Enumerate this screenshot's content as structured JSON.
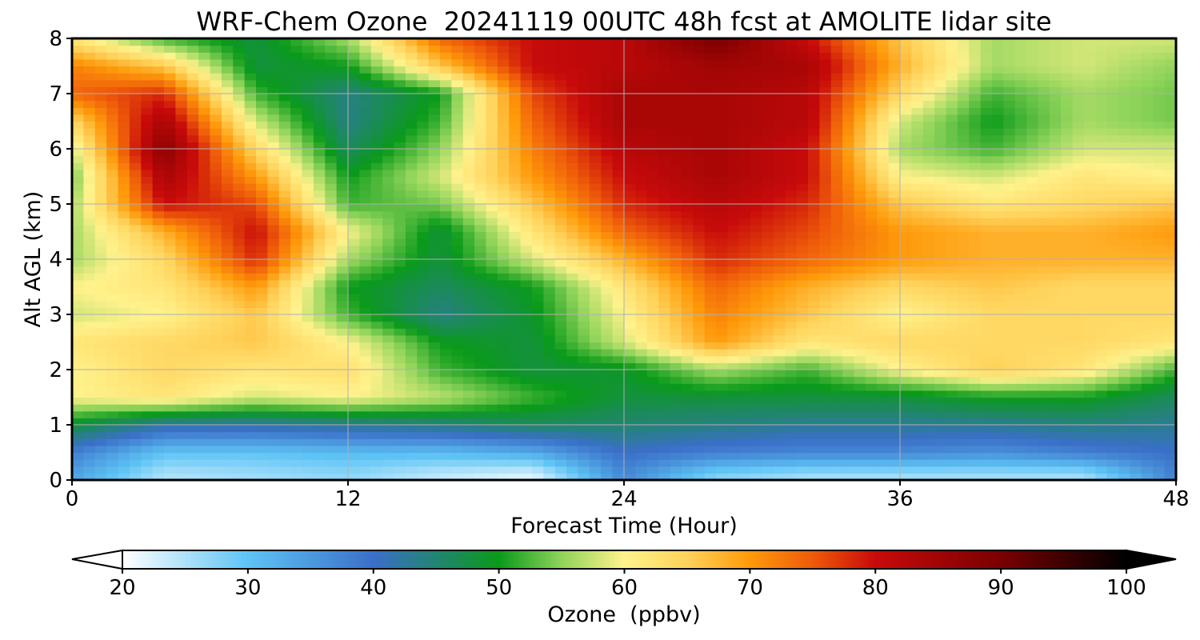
{
  "chart_data": {
    "type": "heatmap",
    "title": "WRF-Chem Ozone  20241119 00UTC 48h fcst at AMOLITE lidar site",
    "xlabel": "Forecast Time (Hour)",
    "ylabel": "Alt AGL (km)",
    "xlim": [
      0,
      48
    ],
    "ylim": [
      0,
      8
    ],
    "x_ticks": [
      0,
      12,
      24,
      36,
      48
    ],
    "y_ticks": [
      0,
      1,
      2,
      3,
      4,
      5,
      6,
      7,
      8
    ],
    "grid": true,
    "colorbar": {
      "label": "Ozone  (ppbv)",
      "orientation": "horizontal",
      "position": "bottom",
      "range": [
        20,
        100
      ],
      "ticks": [
        20,
        30,
        40,
        50,
        60,
        70,
        80,
        90,
        100
      ],
      "extend": "both",
      "stops": [
        {
          "value": 20,
          "color": "#ffffff"
        },
        {
          "value": 30,
          "color": "#5ec4f5"
        },
        {
          "value": 40,
          "color": "#3a6fc8"
        },
        {
          "value": 50,
          "color": "#0a9a1a"
        },
        {
          "value": 55,
          "color": "#8fd45a"
        },
        {
          "value": 60,
          "color": "#fff28c"
        },
        {
          "value": 65,
          "color": "#ffd25a"
        },
        {
          "value": 70,
          "color": "#ff9a0a"
        },
        {
          "value": 75,
          "color": "#ee5a0a"
        },
        {
          "value": 80,
          "color": "#c80a0a"
        },
        {
          "value": 90,
          "color": "#7a0000"
        },
        {
          "value": 100,
          "color": "#000000"
        }
      ]
    },
    "times": [
      0,
      4,
      8,
      12,
      16,
      20,
      24,
      28,
      32,
      36,
      40,
      44,
      48
    ],
    "altitudes": [
      0.1,
      0.5,
      1.0,
      1.5,
      2.0,
      2.5,
      3.0,
      3.5,
      4.0,
      4.5,
      5.0,
      5.5,
      6.0,
      6.5,
      7.0,
      7.5,
      8.0
    ],
    "values": [
      [
        34,
        25,
        26,
        27,
        24,
        22,
        37,
        28,
        26,
        26,
        26,
        26,
        38
      ],
      [
        38,
        30,
        30,
        31,
        31,
        33,
        40,
        38,
        37,
        37,
        36,
        38,
        40
      ],
      [
        48,
        42,
        42,
        43,
        44,
        46,
        45,
        44,
        43,
        43,
        43,
        44,
        43
      ],
      [
        60,
        62,
        58,
        60,
        57,
        52,
        48,
        48,
        48,
        48,
        50,
        50,
        46
      ],
      [
        60,
        64,
        62,
        63,
        52,
        48,
        49,
        56,
        52,
        60,
        65,
        62,
        52
      ],
      [
        62,
        64,
        66,
        60,
        50,
        48,
        58,
        70,
        62,
        64,
        64,
        64,
        62
      ],
      [
        58,
        60,
        66,
        52,
        44,
        49,
        60,
        72,
        66,
        60,
        64,
        64,
        64
      ],
      [
        60,
        62,
        70,
        50,
        46,
        50,
        62,
        74,
        68,
        64,
        66,
        64,
        64
      ],
      [
        56,
        64,
        78,
        56,
        48,
        58,
        68,
        78,
        74,
        70,
        68,
        68,
        68
      ],
      [
        56,
        68,
        80,
        60,
        48,
        62,
        74,
        80,
        76,
        70,
        68,
        68,
        70
      ],
      [
        56,
        80,
        76,
        52,
        54,
        66,
        78,
        82,
        78,
        66,
        62,
        64,
        66
      ],
      [
        54,
        84,
        70,
        50,
        58,
        70,
        80,
        84,
        80,
        60,
        58,
        62,
        60
      ],
      [
        58,
        88,
        64,
        46,
        55,
        72,
        82,
        84,
        80,
        56,
        52,
        58,
        58
      ],
      [
        64,
        84,
        58,
        44,
        52,
        74,
        84,
        84,
        82,
        58,
        50,
        56,
        54
      ],
      [
        74,
        78,
        52,
        44,
        50,
        76,
        84,
        84,
        82,
        64,
        52,
        56,
        54
      ],
      [
        72,
        66,
        48,
        50,
        66,
        80,
        82,
        85,
        84,
        68,
        56,
        58,
        55
      ],
      [
        62,
        52,
        48,
        56,
        74,
        80,
        82,
        90,
        80,
        66,
        56,
        58,
        58
      ]
    ]
  }
}
